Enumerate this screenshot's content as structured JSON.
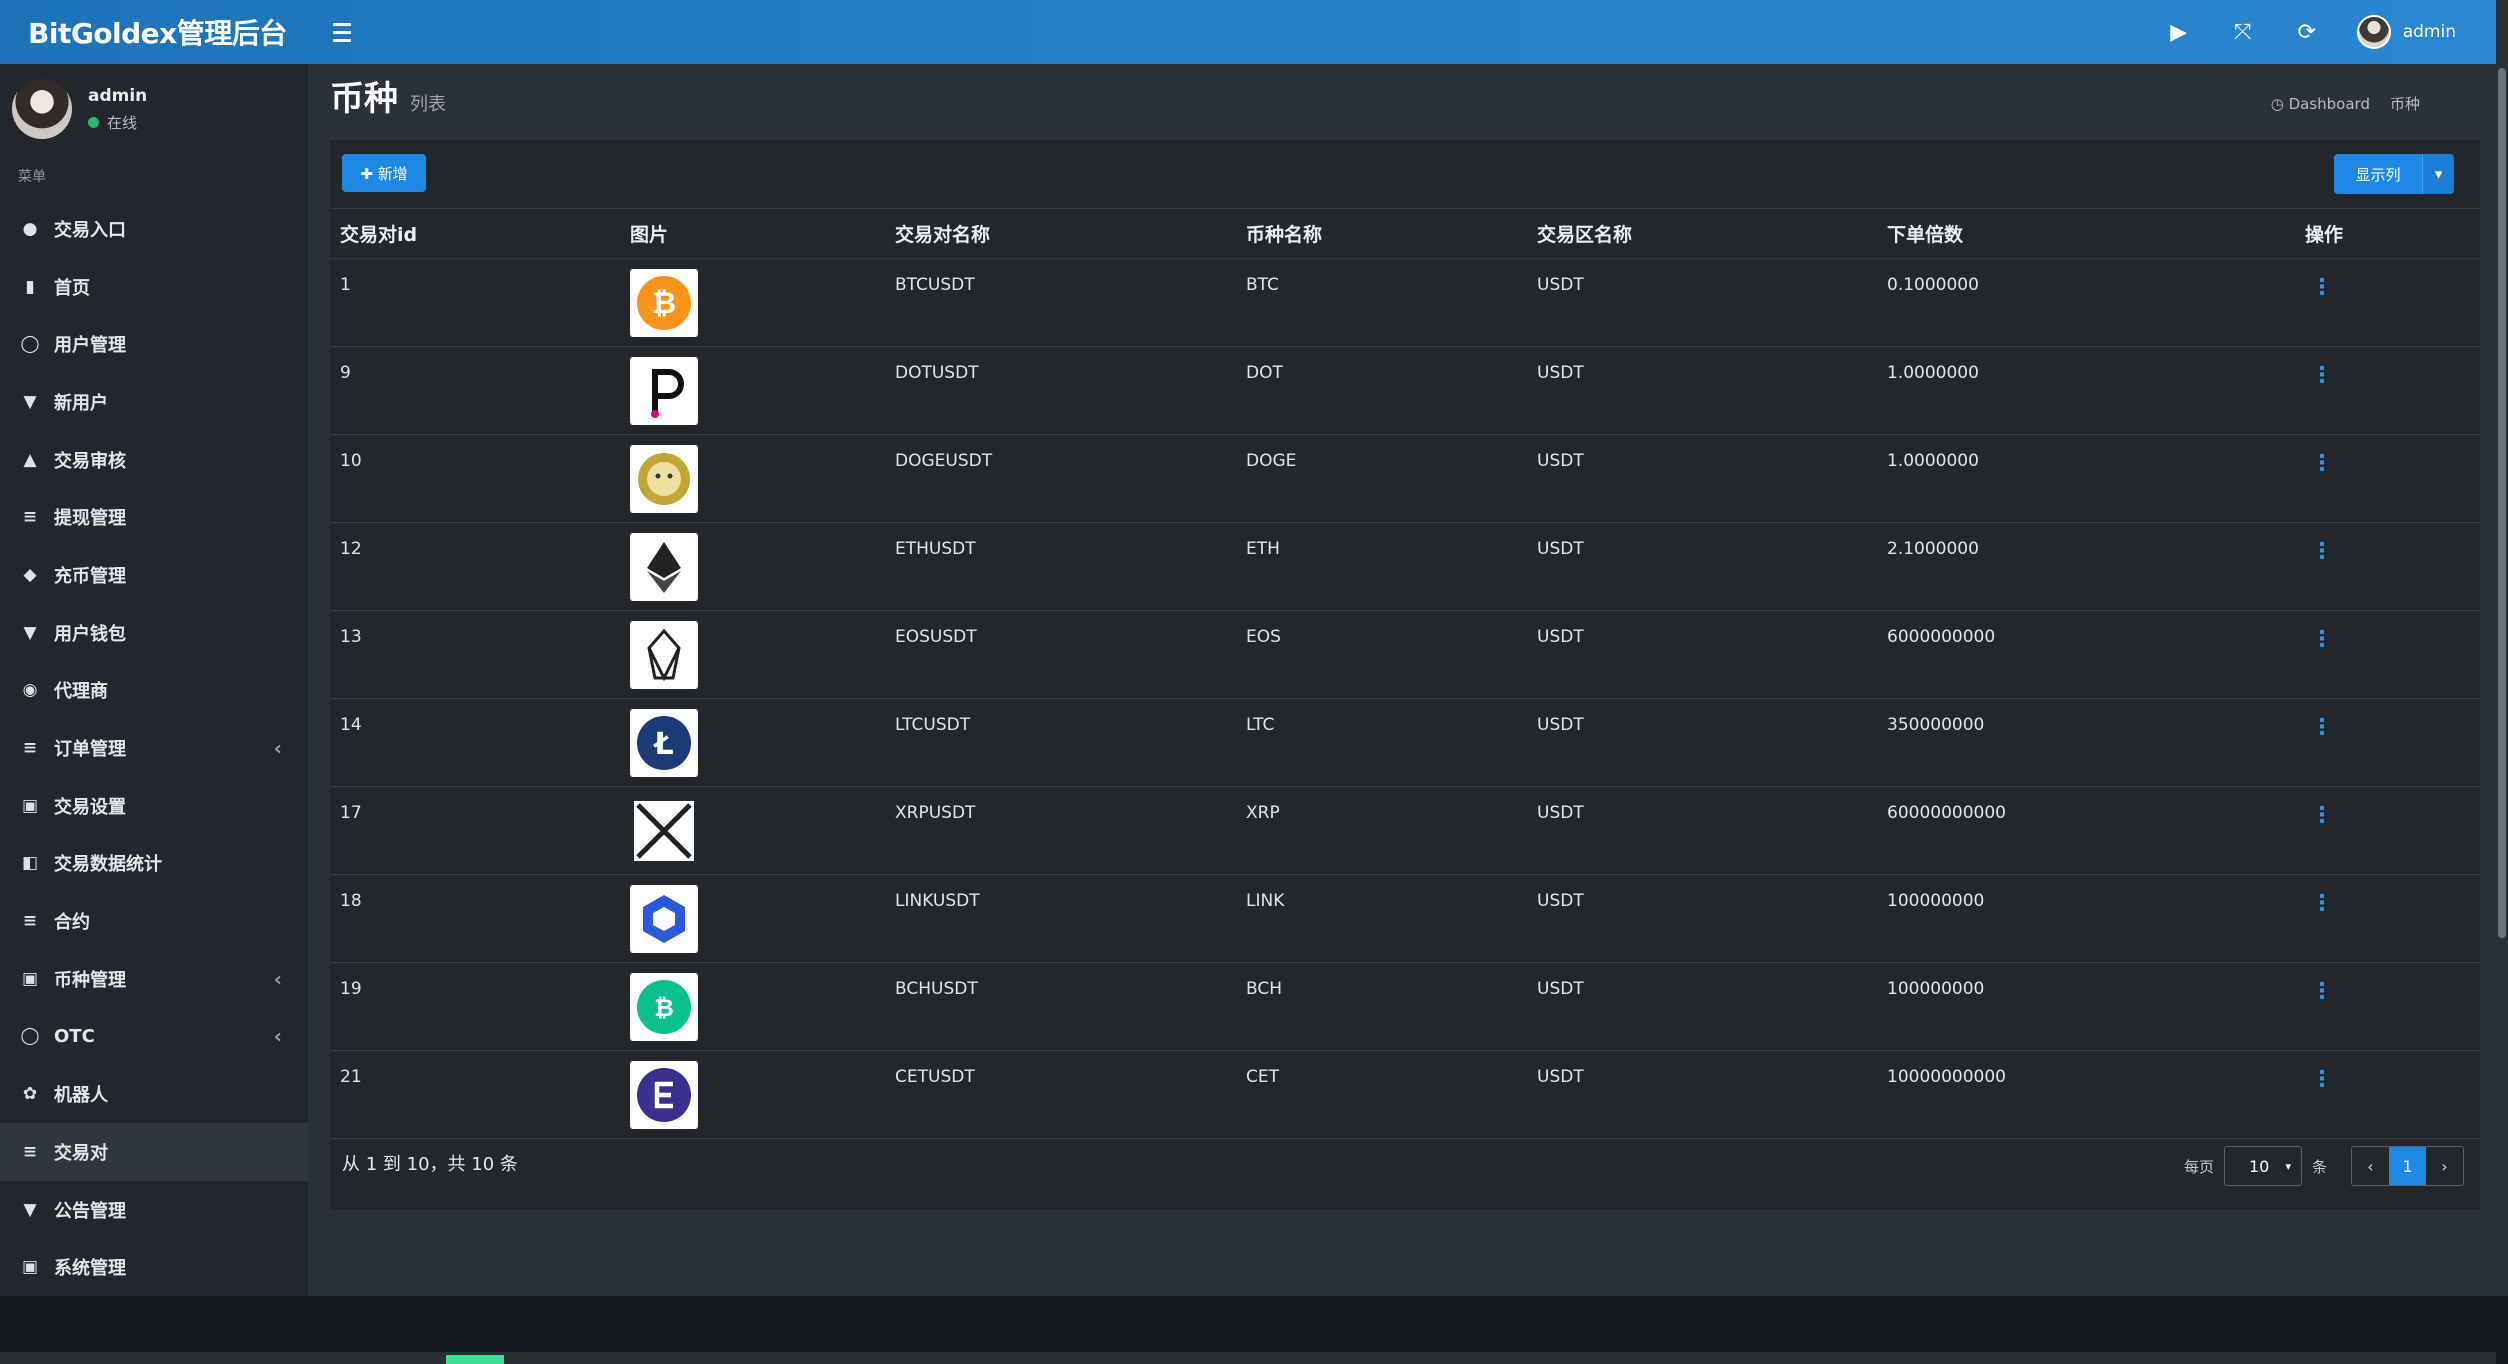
{
  "app": {
    "title": "BitGoldex管理后台"
  },
  "topbar": {
    "username": "admin"
  },
  "user": {
    "name": "admin",
    "status": "在线"
  },
  "nav": {
    "header": "菜单",
    "items": [
      {
        "label": "交易入口",
        "icon": "circle-icon",
        "glyph": "●",
        "has_sub": false
      },
      {
        "label": "首页",
        "icon": "chart-icon",
        "glyph": "▮",
        "has_sub": false
      },
      {
        "label": "用户管理",
        "icon": "user-circle-icon",
        "glyph": "◯",
        "has_sub": false
      },
      {
        "label": "新用户",
        "icon": "user-add-icon",
        "glyph": "▼",
        "has_sub": false
      },
      {
        "label": "交易审核",
        "icon": "arrows-icon",
        "glyph": "▲",
        "has_sub": false
      },
      {
        "label": "提现管理",
        "icon": "list-icon",
        "glyph": "≡",
        "has_sub": false
      },
      {
        "label": "充币管理",
        "icon": "drop-icon",
        "glyph": "◆",
        "has_sub": false
      },
      {
        "label": "用户钱包",
        "icon": "wallet-icon",
        "glyph": "▼",
        "has_sub": false
      },
      {
        "label": "代理商",
        "icon": "agent-icon",
        "glyph": "◉",
        "has_sub": false
      },
      {
        "label": "订单管理",
        "icon": "stack-icon",
        "glyph": "≡",
        "has_sub": true
      },
      {
        "label": "交易设置",
        "icon": "calendar-icon",
        "glyph": "▣",
        "has_sub": false
      },
      {
        "label": "交易数据统计",
        "icon": "stats-icon",
        "glyph": "◧",
        "has_sub": false
      },
      {
        "label": "合约",
        "icon": "list-icon",
        "glyph": "≡",
        "has_sub": false
      },
      {
        "label": "币种管理",
        "icon": "coin-icon",
        "glyph": "▣",
        "has_sub": true
      },
      {
        "label": "OTC",
        "icon": "otc-icon",
        "glyph": "◯",
        "has_sub": true
      },
      {
        "label": "机器人",
        "icon": "robot-icon",
        "glyph": "✿",
        "has_sub": false
      },
      {
        "label": "交易对",
        "icon": "list-icon",
        "glyph": "≡",
        "has_sub": false,
        "active": true
      },
      {
        "label": "公告管理",
        "icon": "bell-icon",
        "glyph": "▼",
        "has_sub": false
      },
      {
        "label": "系统管理",
        "icon": "gear-icon",
        "glyph": "▣",
        "has_sub": false
      }
    ]
  },
  "page": {
    "title": "币种",
    "subtitle": "列表"
  },
  "breadcrumb": {
    "home": "Dashboard",
    "current": "币种"
  },
  "toolbar": {
    "add_label": "✚ 新增",
    "columns_label": "显示列",
    "caret": "▾"
  },
  "table": {
    "columns": [
      "交易对id",
      "图片",
      "交易对名称",
      "币种名称",
      "交易区名称",
      "下单倍数",
      "操作"
    ],
    "rows": [
      {
        "id": "1",
        "pair": "BTCUSDT",
        "coin": "BTC",
        "zone": "USDT",
        "multiple": "0.1000000",
        "logo": "btc"
      },
      {
        "id": "9",
        "pair": "DOTUSDT",
        "coin": "DOT",
        "zone": "USDT",
        "multiple": "1.0000000",
        "logo": "dot"
      },
      {
        "id": "10",
        "pair": "DOGEUSDT",
        "coin": "DOGE",
        "zone": "USDT",
        "multiple": "1.0000000",
        "logo": "doge"
      },
      {
        "id": "12",
        "pair": "ETHUSDT",
        "coin": "ETH",
        "zone": "USDT",
        "multiple": "2.1000000",
        "logo": "eth"
      },
      {
        "id": "13",
        "pair": "EOSUSDT",
        "coin": "EOS",
        "zone": "USDT",
        "multiple": "6000000000",
        "logo": "eos"
      },
      {
        "id": "14",
        "pair": "LTCUSDT",
        "coin": "LTC",
        "zone": "USDT",
        "multiple": "350000000",
        "logo": "ltc"
      },
      {
        "id": "17",
        "pair": "XRPUSDT",
        "coin": "XRP",
        "zone": "USDT",
        "multiple": "60000000000",
        "logo": "xrp"
      },
      {
        "id": "18",
        "pair": "LINKUSDT",
        "coin": "LINK",
        "zone": "USDT",
        "multiple": "100000000",
        "logo": "link"
      },
      {
        "id": "19",
        "pair": "BCHUSDT",
        "coin": "BCH",
        "zone": "USDT",
        "multiple": "100000000",
        "logo": "bch"
      },
      {
        "id": "21",
        "pair": "CETUSDT",
        "coin": "CET",
        "zone": "USDT",
        "multiple": "10000000000",
        "logo": "cet"
      }
    ],
    "op_glyph": "⋮"
  },
  "footer": {
    "info": "从 1 到 10，共 10 条",
    "per_page_label": "每页",
    "per_page_value": "10",
    "per_page_suffix": "条",
    "prev": "‹",
    "current_page": "1",
    "next": "›"
  },
  "colors": {
    "accent": "#1e88e5",
    "topbar": "#2780c6",
    "sidebar": "#22272d",
    "panel": "#23272c"
  }
}
